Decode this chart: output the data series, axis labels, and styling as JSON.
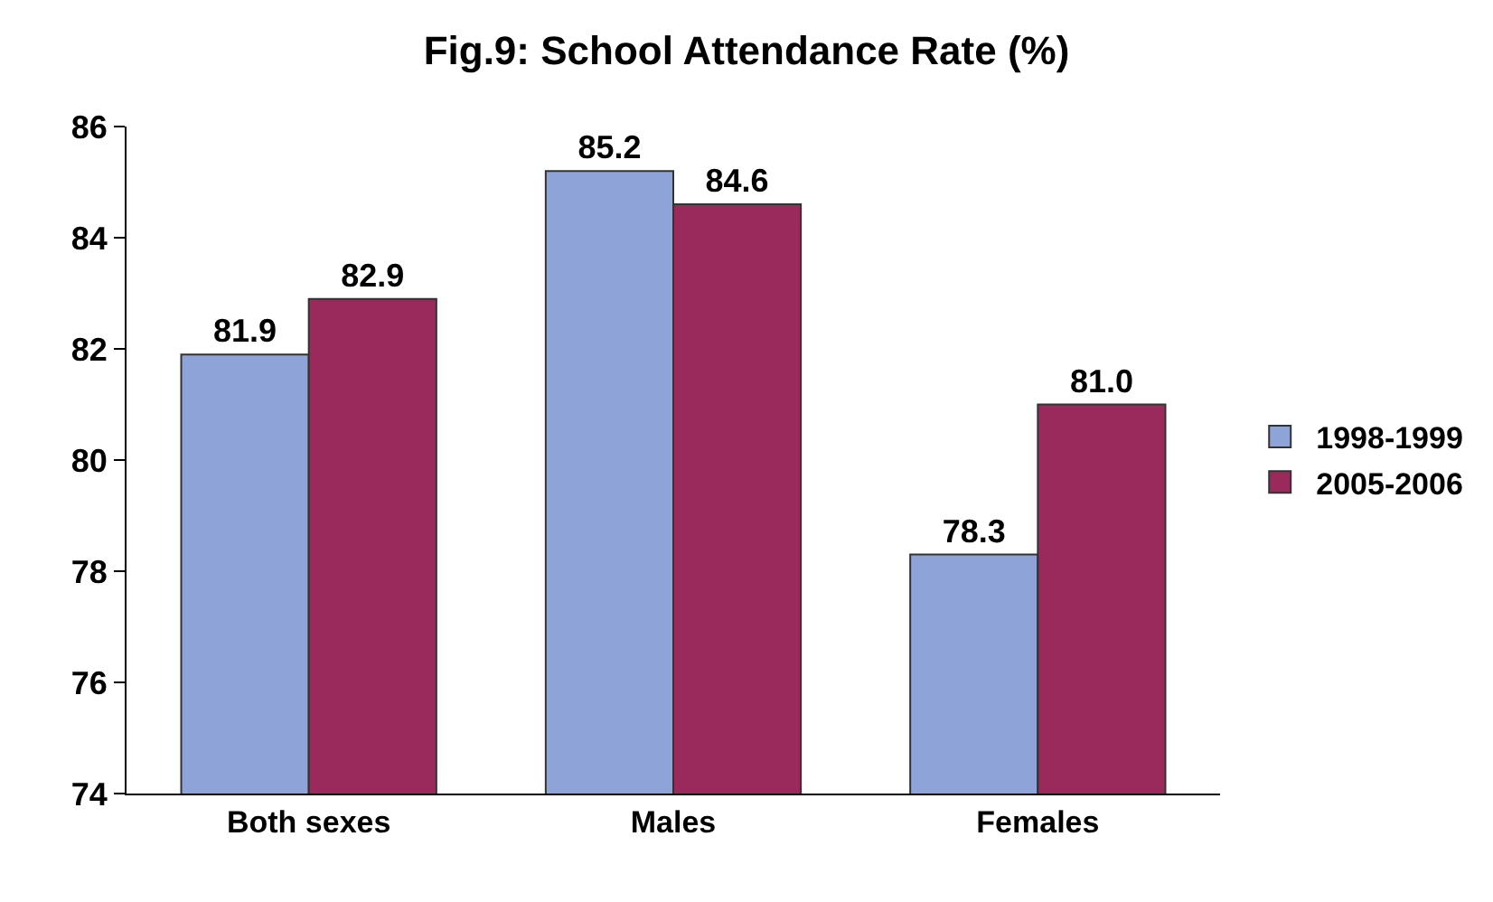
{
  "chart_data": {
    "type": "bar",
    "title": "Fig.9: School Attendance Rate (%)",
    "categories": [
      "Both sexes",
      "Males",
      "Females"
    ],
    "series": [
      {
        "name": "1998-1999",
        "color": "#8ea3d8",
        "values": [
          81.9,
          85.2,
          78.3
        ],
        "value_labels": [
          "81.9",
          "85.2",
          "78.3"
        ]
      },
      {
        "name": "2005-2006",
        "color": "#9b2a5c",
        "values": [
          82.9,
          84.6,
          81.0
        ],
        "value_labels": [
          "82.9",
          "84.6",
          "81.0"
        ]
      }
    ],
    "ylim": [
      74,
      86
    ],
    "yticks": [
      74,
      76,
      78,
      80,
      82,
      84,
      86
    ],
    "grid": false,
    "legend": "right"
  }
}
